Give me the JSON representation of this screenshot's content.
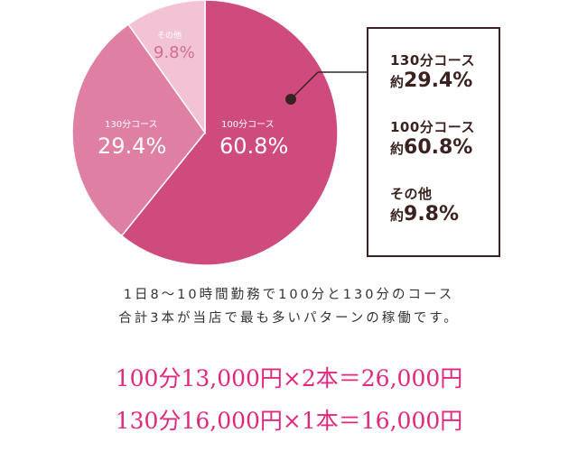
{
  "chart_data": {
    "type": "pie",
    "slices": [
      {
        "name": "100分コース",
        "value": 60.8,
        "label": "60.8%",
        "color": "#cf4b7e"
      },
      {
        "name": "130分コース",
        "value": 29.4,
        "label": "29.4%",
        "color": "#de7fa3"
      },
      {
        "name": "その他",
        "value": 9.8,
        "label": "9.8%",
        "color": "#f2c3d5"
      }
    ],
    "legend_placement": "right",
    "legend": [
      {
        "name": "130分コース",
        "prefix": "約",
        "value": "29.4%"
      },
      {
        "name": "100分コース",
        "prefix": "約",
        "value": "60.8%"
      },
      {
        "name": "その他",
        "prefix": "約",
        "value": "9.8%"
      }
    ]
  },
  "description": {
    "line1": "1日8～10時間勤務で100分と130分のコース",
    "line2": "合計3本が当店で最も多いパターンの稼働です。"
  },
  "calculation": {
    "line1": "100分13,000円×2本＝26,000円",
    "line2": "130分16,000円×1本＝16,000円"
  },
  "colors": {
    "accent": "#e0287f",
    "border": "#3a2220",
    "small_slice_text": "#d46a93"
  }
}
